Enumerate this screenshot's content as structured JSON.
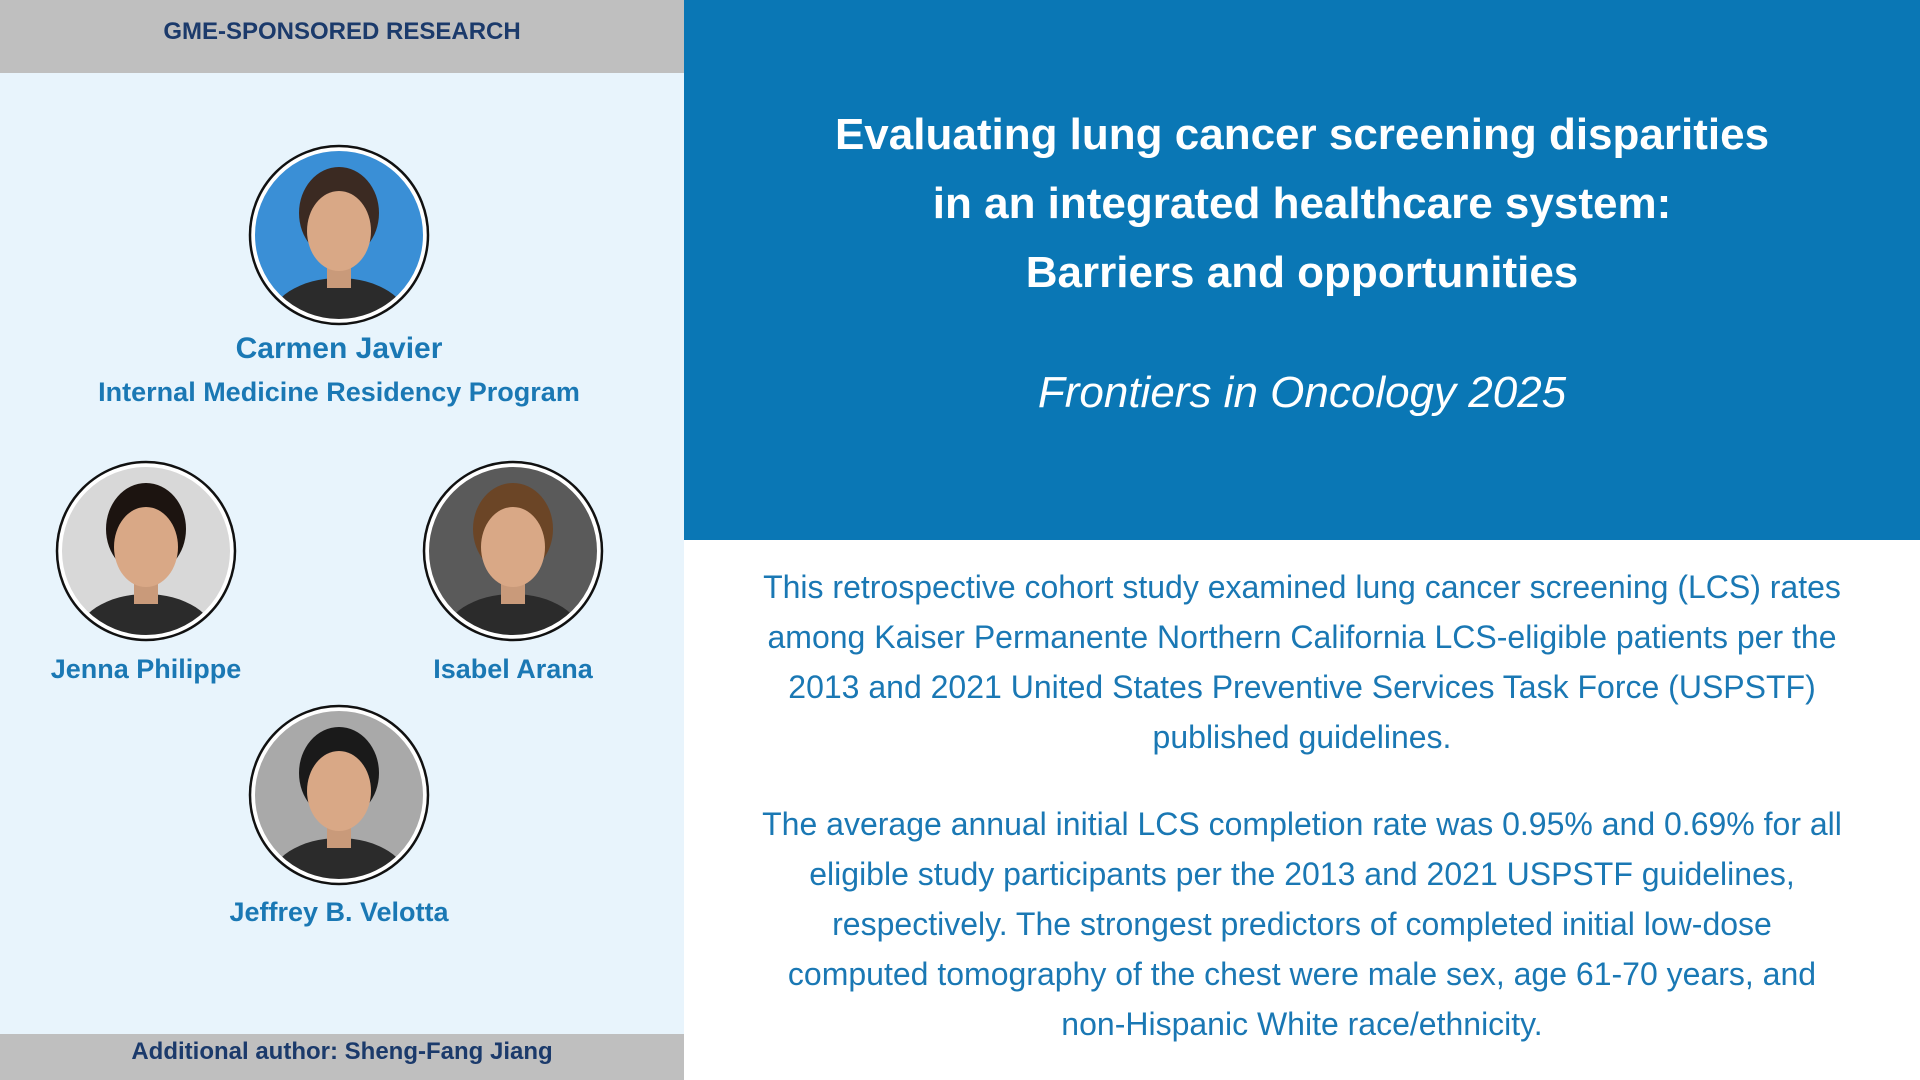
{
  "header": {
    "label": "GME-SPONSORED RESEARCH"
  },
  "authors": [
    {
      "name": "Carmen Javier",
      "program": "Internal Medicine Residency Program"
    },
    {
      "name": "Jenna Philippe"
    },
    {
      "name": "Isabel Arana"
    },
    {
      "name": "Jeffrey B. Velotta"
    }
  ],
  "footer": {
    "label": "Additional author: Sheng-Fang Jiang"
  },
  "article": {
    "title_lines": [
      "Evaluating lung cancer screening disparities",
      "in an integrated healthcare system:",
      "Barriers and opportunities"
    ],
    "journal": "Frontiers in Oncology 2025",
    "paragraphs": [
      [
        "This retrospective cohort study examined lung cancer screening (LCS) rates",
        "among Kaiser Permanente Northern California LCS-eligible patients per the",
        "2013 and 2021 United States Preventive Services Task Force (USPSTF)",
        "published guidelines."
      ],
      [
        "The average annual initial LCS completion rate was 0.95% and 0.69% for all",
        "eligible study participants per the 2013 and 2021 USPSTF guidelines,",
        "respectively. The strongest predictors of completed initial low-dose",
        "computed tomography of the chest were male sex, age 61-70 years, and",
        "non-Hispanic White race/ethnicity."
      ]
    ]
  }
}
